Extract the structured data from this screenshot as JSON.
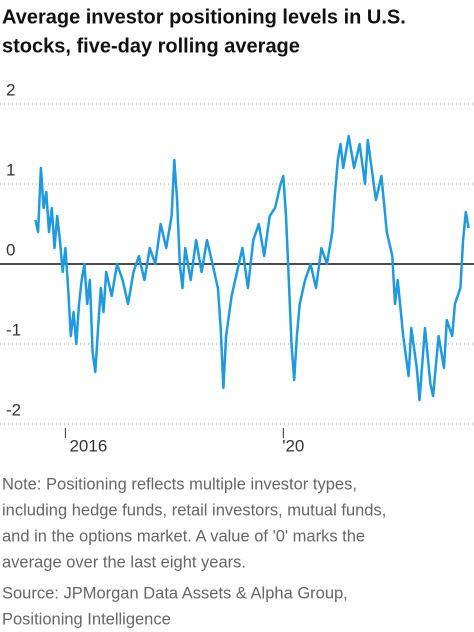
{
  "chart_data": {
    "type": "line",
    "title": [
      "Average investor positioning levels in U.S.",
      "stocks, five-day rolling average"
    ],
    "note": [
      "Note: Positioning reflects multiple investor types,",
      "including hedge funds, retail investors, mutual funds,",
      "and in the options market. A value of '0' marks the",
      "average over the last eight years."
    ],
    "source": [
      "Source: JPMorgan Data Assets & Alpha Group,",
      "Positioning Intelligence"
    ],
    "x": [
      2015.45,
      2015.5,
      2015.55,
      2015.6,
      2015.65,
      2015.7,
      2015.75,
      2015.8,
      2015.85,
      2015.9,
      2015.95,
      2016.0,
      2016.05,
      2016.1,
      2016.15,
      2016.2,
      2016.25,
      2016.3,
      2016.35,
      2016.4,
      2016.45,
      2016.5,
      2016.55,
      2016.6,
      2016.65,
      2016.7,
      2016.75,
      2016.85,
      2016.95,
      2017.05,
      2017.15,
      2017.25,
      2017.35,
      2017.45,
      2017.55,
      2017.65,
      2017.75,
      2017.85,
      2017.95,
      2018.0,
      2018.05,
      2018.1,
      2018.15,
      2018.2,
      2018.3,
      2018.4,
      2018.5,
      2018.6,
      2018.7,
      2018.8,
      2018.85,
      2018.9,
      2018.95,
      2019.05,
      2019.15,
      2019.25,
      2019.35,
      2019.45,
      2019.55,
      2019.65,
      2019.75,
      2019.85,
      2019.95,
      2020.0,
      2020.05,
      2020.1,
      2020.15,
      2020.2,
      2020.25,
      2020.3,
      2020.4,
      2020.5,
      2020.6,
      2020.7,
      2020.8,
      2020.9,
      2020.95,
      2021.0,
      2021.05,
      2021.1,
      2021.2,
      2021.3,
      2021.4,
      2021.5,
      2021.55,
      2021.6,
      2021.7,
      2021.8,
      2021.9,
      2022.0,
      2022.05,
      2022.1,
      2022.2,
      2022.3,
      2022.35,
      2022.45,
      2022.5,
      2022.6,
      2022.7,
      2022.75,
      2022.85,
      2022.95,
      2023.0,
      2023.1,
      2023.15,
      2023.25,
      2023.3,
      2023.35,
      2023.4
    ],
    "series": [
      {
        "color": "#1e9be0",
        "values": [
          0.55,
          0.4,
          1.2,
          0.7,
          0.9,
          0.4,
          0.7,
          0.2,
          0.6,
          0.3,
          -0.1,
          0.2,
          -0.3,
          -0.9,
          -0.6,
          -1.0,
          -0.5,
          -0.2,
          0.0,
          -0.5,
          -0.2,
          -1.1,
          -1.35,
          -0.8,
          -0.3,
          -0.6,
          -0.1,
          -0.4,
          0.0,
          -0.2,
          -0.5,
          -0.1,
          0.1,
          -0.2,
          0.2,
          0.0,
          0.5,
          0.2,
          0.6,
          1.3,
          0.8,
          0.0,
          -0.3,
          0.2,
          -0.2,
          0.3,
          -0.1,
          0.3,
          0.0,
          -0.3,
          -0.8,
          -1.55,
          -0.9,
          -0.4,
          -0.1,
          0.2,
          -0.3,
          0.3,
          0.5,
          0.1,
          0.6,
          0.7,
          1.0,
          1.1,
          0.6,
          -0.2,
          -1.0,
          -1.45,
          -0.9,
          -0.5,
          -0.2,
          0.0,
          -0.3,
          0.2,
          0.0,
          0.4,
          0.9,
          1.3,
          1.5,
          1.2,
          1.6,
          1.2,
          1.5,
          1.0,
          1.55,
          1.3,
          0.8,
          1.1,
          0.4,
          0.1,
          -0.5,
          -0.2,
          -0.9,
          -1.4,
          -0.8,
          -1.3,
          -1.7,
          -0.8,
          -1.5,
          -1.65,
          -0.9,
          -1.3,
          -0.7,
          -0.9,
          -0.5,
          -0.3,
          0.3,
          0.65,
          0.45
        ]
      }
    ],
    "xlim": [
      2014.8,
      2023.5
    ],
    "xticks": [
      2016,
      {
        "value": 2020,
        "label": "'20"
      }
    ],
    "ylim": [
      -2.1,
      2.2
    ],
    "yticks": [
      2,
      1,
      0,
      -1,
      -2
    ],
    "grid": true
  }
}
